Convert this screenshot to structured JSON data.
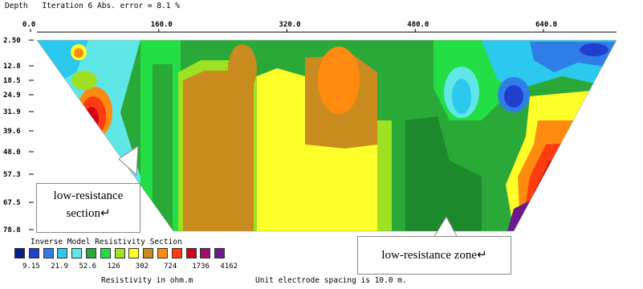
{
  "header": {
    "depth_label": "Depth",
    "iteration_text": "Iteration 6 Abs. error = 8.1 %"
  },
  "chart_data": {
    "type": "heatmap",
    "title": "Inverse Model Resistivity Section",
    "x_ticks": [
      "0.0",
      "160.0",
      "320.0",
      "480.0",
      "640.0"
    ],
    "x_tick_values": [
      0,
      160,
      320,
      480,
      640
    ],
    "y_ticks": [
      "2.50",
      "12.8",
      "18.5",
      "24.9",
      "31.9",
      "39.6",
      "48.0",
      "57.3",
      "67.5",
      "78.8"
    ],
    "legend_values": [
      "9.15",
      "21.9",
      "52.6",
      "126",
      "302",
      "724",
      "1736",
      "4162"
    ],
    "legend_colors": [
      "#0a1e8c",
      "#1f3fcc",
      "#2f7ee8",
      "#2cc8ee",
      "#5fe7e7",
      "#2aa838",
      "#22dd44",
      "#9ee022",
      "#ffff2a",
      "#c98a1e",
      "#ff8a10",
      "#ff3b10",
      "#d4001a",
      "#a0106a",
      "#6a1a8a"
    ],
    "xlabel": "Unit electrode spacing is 10.0 m.",
    "colorbar_label": "Resistivity in ohm.m",
    "zones": [
      {
        "name": "low-resistance section",
        "x_range": [
          40,
          200
        ],
        "note": "cyan / blue band on left"
      },
      {
        "name": "low-resistance zone",
        "x_range": [
          450,
          560
        ],
        "note": "dark green block"
      }
    ]
  },
  "annotations": {
    "left_callout_line1": "low-resistance",
    "left_callout_line2": "section",
    "right_callout": "low-resistance zone"
  },
  "footer": {
    "legend_title": "Inverse Model Resistivity Section",
    "resistivity_unit": "Resistivity in ohm.m",
    "spacing_text": "Unit electrode spacing is 10.0 m."
  }
}
